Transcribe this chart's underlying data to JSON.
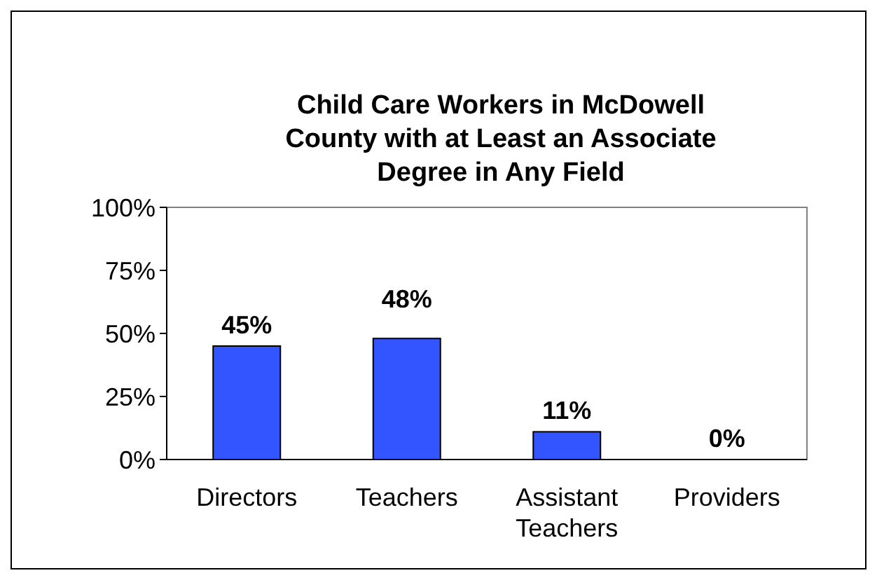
{
  "chart_data": {
    "type": "bar",
    "title": "Child Care Workers in McDowell County with at Least an Associate Degree in Any Field",
    "categories": [
      "Directors",
      "Teachers",
      "Assistant Teachers",
      "Providers"
    ],
    "values": [
      45,
      48,
      11,
      0
    ],
    "value_labels": [
      "45%",
      "48%",
      "11%",
      "0%"
    ],
    "color": "#3355ff",
    "ylim": [
      0,
      100
    ],
    "yticks": [
      {
        "value": 0,
        "label": "0%"
      },
      {
        "value": 25,
        "label": "25%"
      },
      {
        "value": 50,
        "label": "50%"
      },
      {
        "value": 75,
        "label": "75%"
      },
      {
        "value": 100,
        "label": "100%"
      }
    ],
    "grid": false
  }
}
